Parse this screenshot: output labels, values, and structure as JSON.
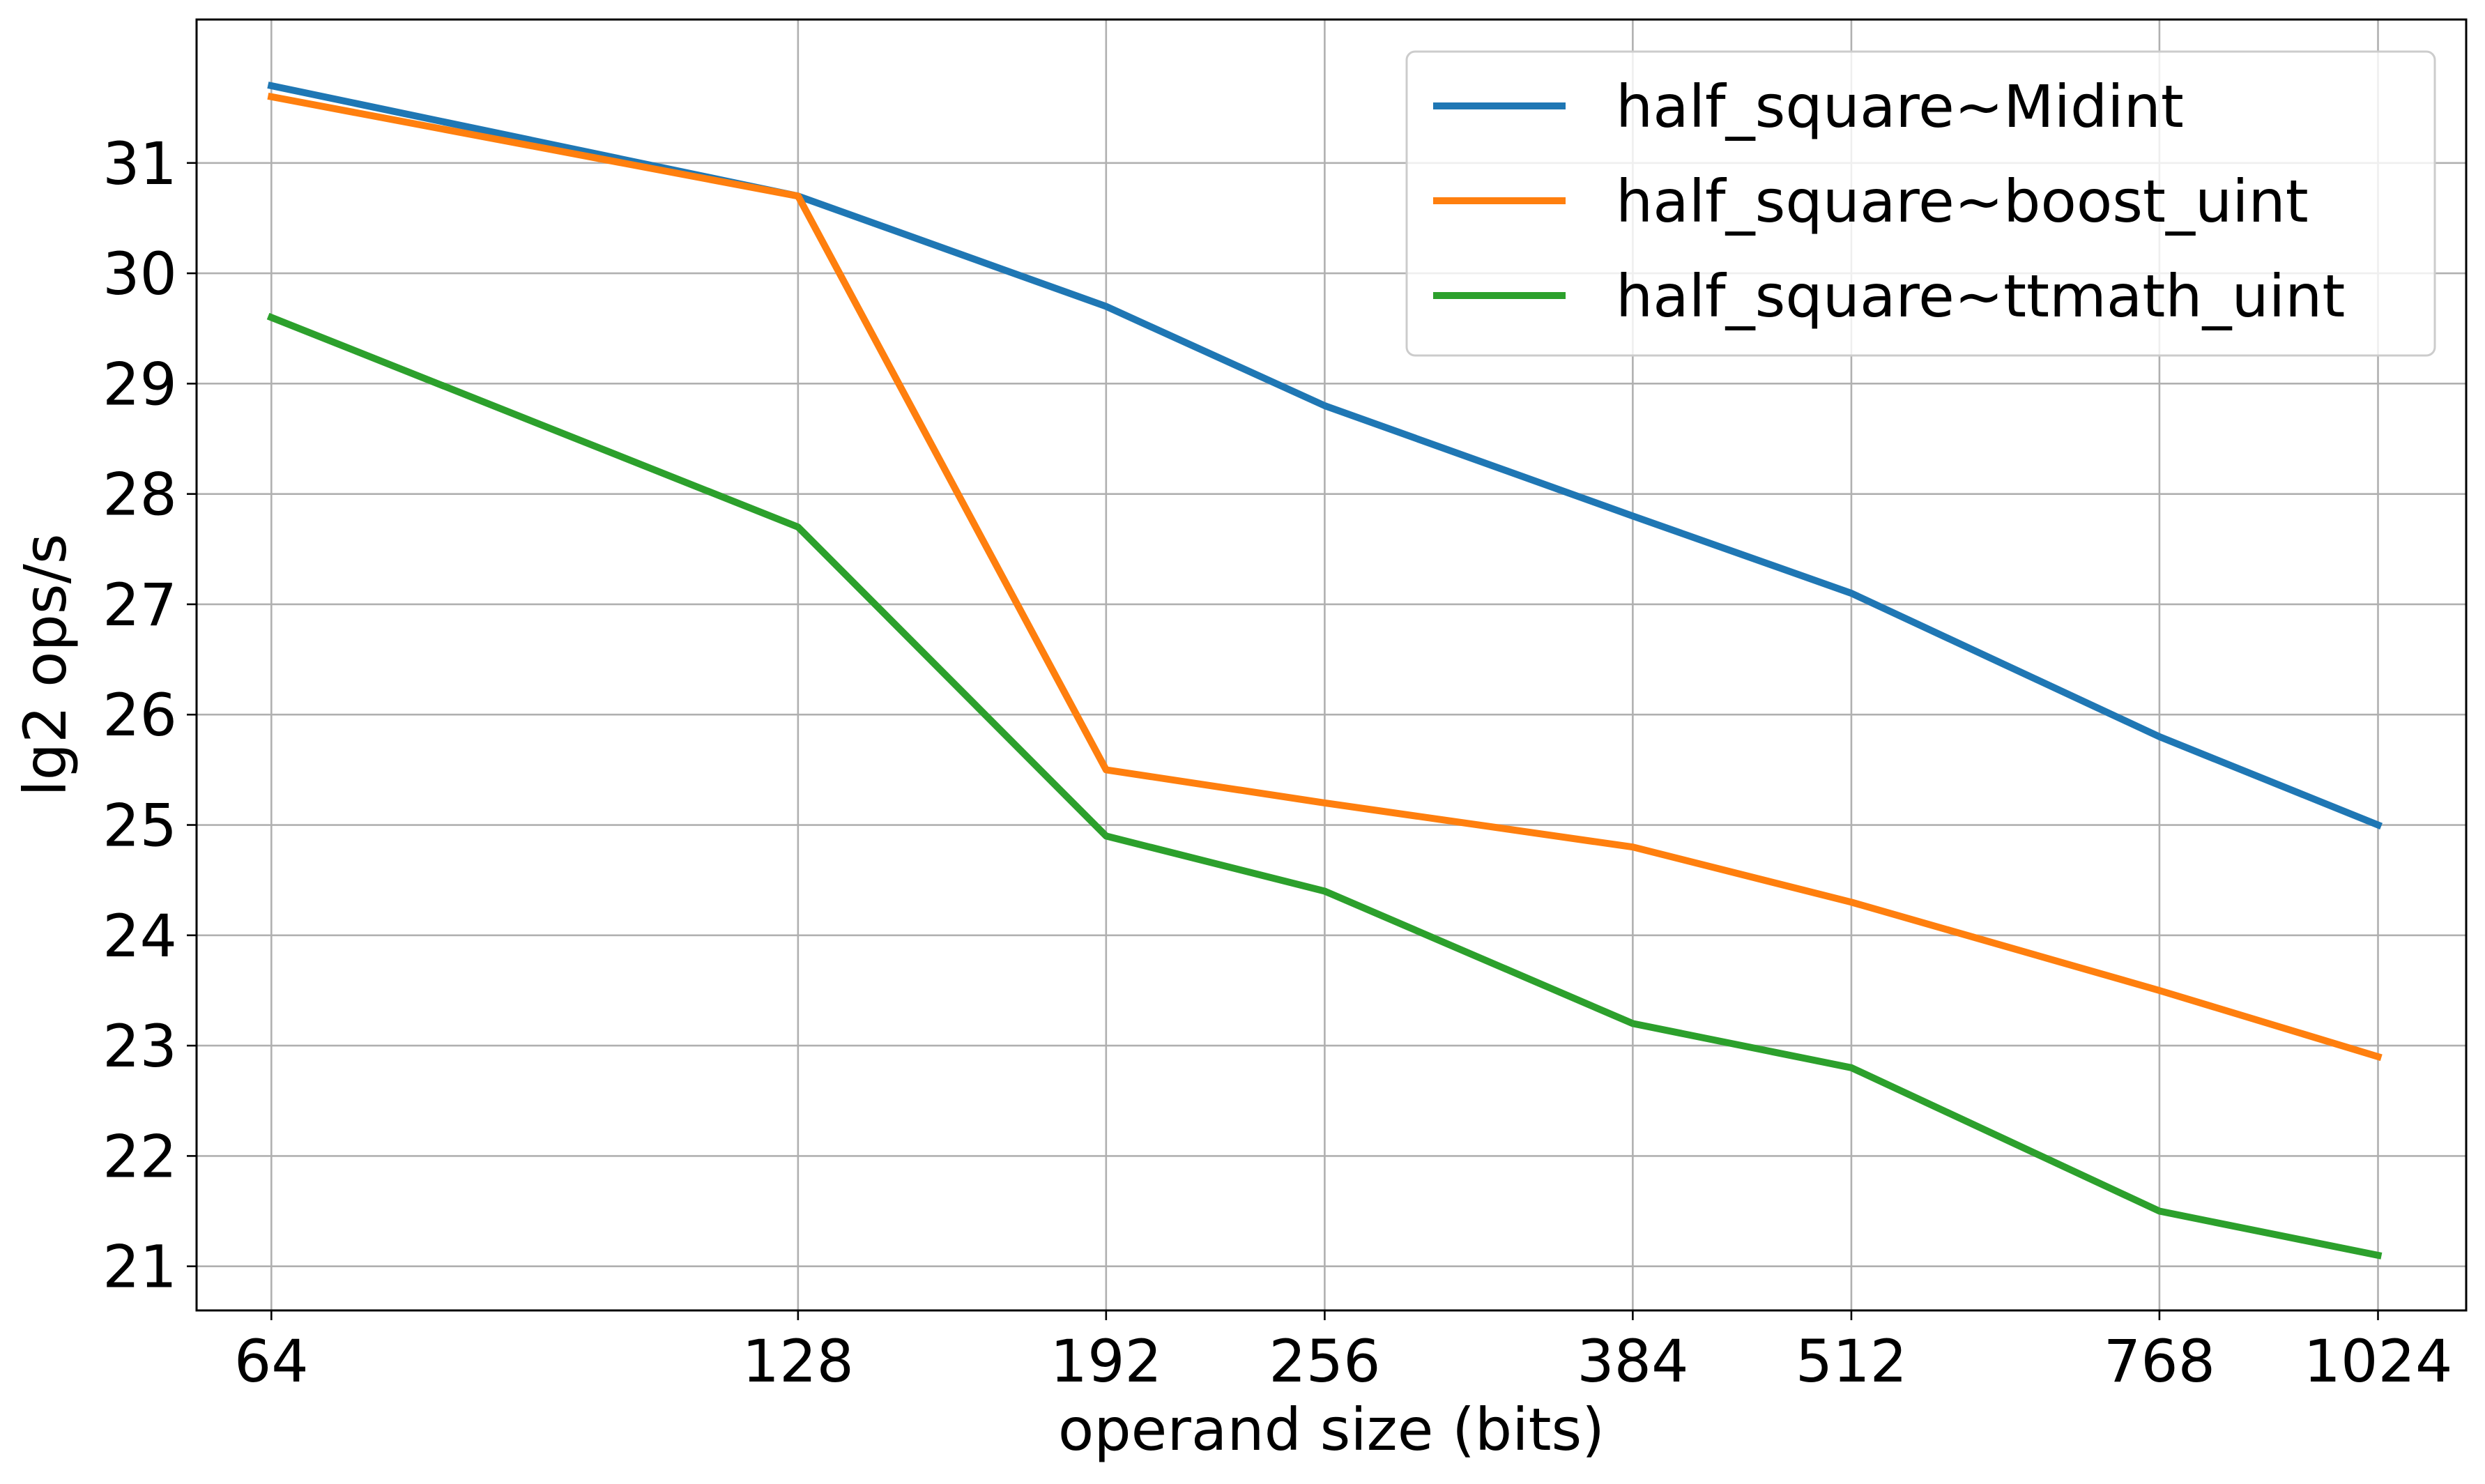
{
  "chart_data": {
    "type": "line",
    "title": "",
    "xlabel": "operand size (bits)",
    "ylabel": "lg2 ops/s",
    "x_scale": "log2",
    "x": [
      64,
      128,
      192,
      256,
      384,
      512,
      768,
      1024
    ],
    "x_tick_labels": [
      "64",
      "128",
      "192",
      "256",
      "384",
      "512",
      "768",
      "1024"
    ],
    "xlim": [
      58,
      1150
    ],
    "ylim": [
      20.6,
      32.3
    ],
    "y_ticks": [
      21,
      22,
      23,
      24,
      25,
      26,
      27,
      28,
      29,
      30,
      31
    ],
    "grid": true,
    "legend_position": "top-right",
    "series": [
      {
        "name": "half_square~Midint",
        "color": "#1f77b4",
        "values": [
          31.7,
          30.7,
          29.7,
          28.8,
          27.8,
          27.1,
          25.8,
          25.0
        ]
      },
      {
        "name": "half_square~boost_uint",
        "color": "#ff7f0e",
        "values": [
          31.6,
          30.7,
          25.5,
          25.2,
          24.8,
          24.3,
          23.5,
          22.9
        ]
      },
      {
        "name": "half_square~ttmath_uint",
        "color": "#2ca02c",
        "values": [
          29.6,
          27.7,
          24.9,
          24.4,
          23.2,
          22.8,
          21.5,
          21.1
        ]
      }
    ]
  }
}
